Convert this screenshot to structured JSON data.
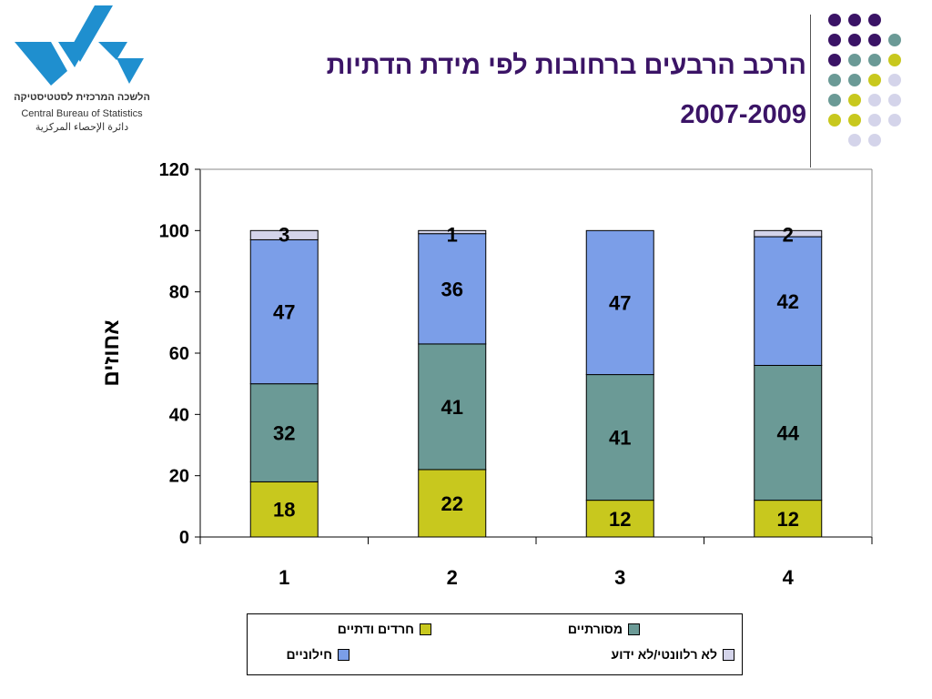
{
  "logo": {
    "name_he": "הלשכה המרכזית לסטטיסטיקה",
    "name_en": "Central Bureau of Statistics",
    "name_ar": "دائرة الإحصاء المركزية",
    "color": "#1f8fcf"
  },
  "title": {
    "line1": "הרכב הרבעים ברחובות לפי מידת הדתיות",
    "line2": "2007-2009",
    "color": "#3b1466"
  },
  "dots": {
    "colors": [
      "#3b1466",
      "#6b9a96",
      "#c8c81e",
      "#d4d4ea"
    ]
  },
  "chart_data": {
    "type": "bar",
    "stacked": true,
    "categories": [
      "1",
      "2",
      "3",
      "4"
    ],
    "series": [
      {
        "name": "חרדים ודתיים",
        "values": [
          18,
          22,
          12,
          12
        ],
        "labels": [
          "18",
          "22",
          "12",
          "12"
        ],
        "color": "#c8c81e"
      },
      {
        "name": "מסורתיים",
        "values": [
          32,
          41,
          41,
          44
        ],
        "labels": [
          "32",
          "41",
          "41",
          "44"
        ],
        "color": "#6b9a96"
      },
      {
        "name": "חילוניים",
        "values": [
          47,
          36,
          47,
          42
        ],
        "labels": [
          "47",
          "36",
          "47",
          "42"
        ],
        "color": "#7b9ee8"
      },
      {
        "name": "לא רלוונטי/לא ידוע",
        "values": [
          3,
          1,
          0,
          2
        ],
        "labels": [
          "3",
          "1",
          "",
          "2"
        ],
        "color": "#d4d4ea"
      }
    ],
    "ylabel": "אחוזים",
    "xlabel": "",
    "ylim": [
      0,
      120
    ],
    "yticks": [
      0,
      20,
      40,
      60,
      80,
      100,
      120
    ],
    "grid": false,
    "legend": "bottom"
  }
}
